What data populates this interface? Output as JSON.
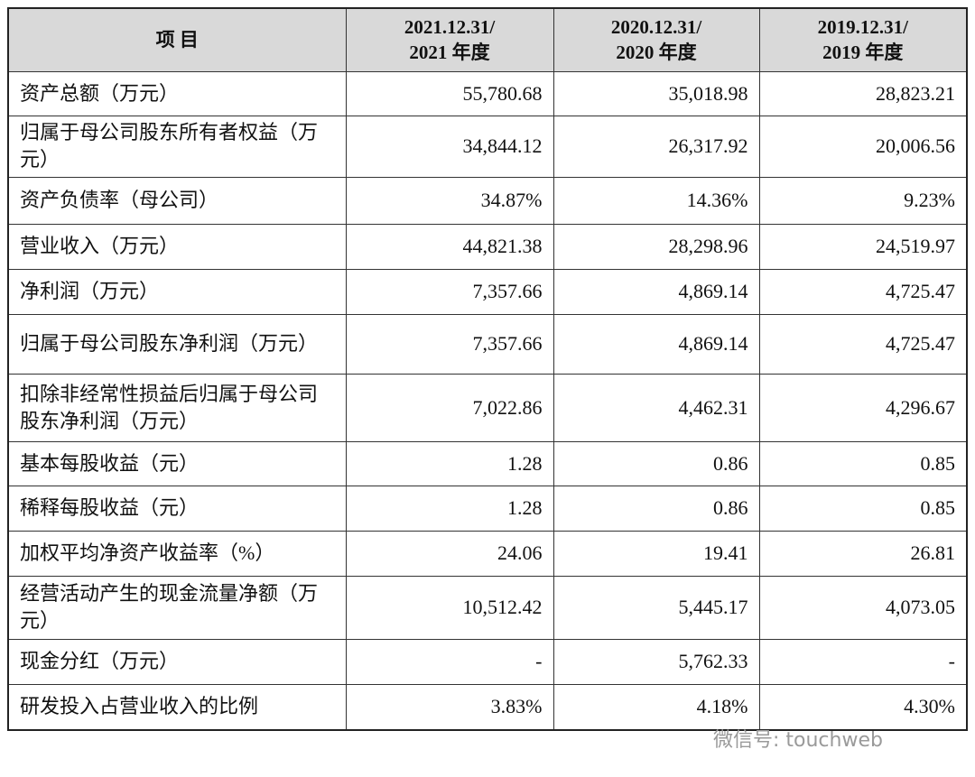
{
  "table": {
    "header": [
      "项 目",
      [
        "2021.12.31/",
        "2021 年度"
      ],
      [
        "2020.12.31/",
        "2020 年度"
      ],
      [
        "2019.12.31/",
        "2019 年度"
      ]
    ],
    "rows": [
      [
        "资产总额（万元）",
        "55,780.68",
        "35,018.98",
        "28,823.21"
      ],
      [
        "归属于母公司股东所有者权益（万元）",
        "34,844.12",
        "26,317.92",
        "20,006.56"
      ],
      [
        "资产负债率（母公司）",
        "34.87%",
        "14.36%",
        "9.23%"
      ],
      [
        "营业收入（万元）",
        "44,821.38",
        "28,298.96",
        "24,519.97"
      ],
      [
        "净利润（万元）",
        "7,357.66",
        "4,869.14",
        "4,725.47"
      ],
      [
        "归属于母公司股东净利润（万元）",
        "7,357.66",
        "4,869.14",
        "4,725.47"
      ],
      [
        "扣除非经常性损益后归属于母公司股东净利润（万元）",
        "7,022.86",
        "4,462.31",
        "4,296.67"
      ],
      [
        "基本每股收益（元）",
        "1.28",
        "0.86",
        "0.85"
      ],
      [
        "稀释每股收益（元）",
        "1.28",
        "0.86",
        "0.85"
      ],
      [
        "加权平均净资产收益率（%）",
        "24.06",
        "19.41",
        "26.81"
      ],
      [
        "经营活动产生的现金流量净额（万元）",
        "10,512.42",
        "5,445.17",
        "4,073.05"
      ],
      [
        "现金分红（万元）",
        "-",
        "5,762.33",
        "-"
      ],
      [
        "研发投入占营业收入的比例",
        "3.83%",
        "4.18%",
        "4.30%"
      ]
    ]
  },
  "watermark": "微信号: touchweb"
}
